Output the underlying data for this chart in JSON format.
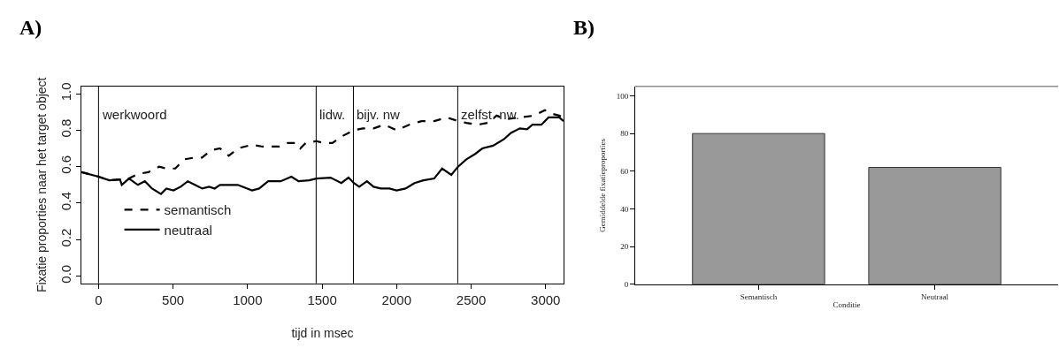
{
  "chart_data": [
    {
      "type": "line",
      "title": "A)",
      "xlabel": "tijd in msec",
      "ylabel": "Fixatie proporties naar het target object",
      "xlim": [
        -115,
        3120
      ],
      "ylim": [
        -0.04,
        1.04
      ],
      "xticks": [
        0,
        500,
        1000,
        1500,
        2000,
        2500,
        3000
      ],
      "yticks": [
        {
          "value": 0,
          "label": "0.0"
        },
        0.2,
        0.4,
        0.6,
        0.8,
        {
          "value": 1,
          "label": "1.0"
        }
      ],
      "grid": false,
      "legend": "bottom left",
      "marker": "none",
      "series": [
        {
          "name": "semantisch",
          "color": "#000000",
          "line_style": "dashed",
          "x": [
            -115,
            0,
            72,
            144,
            204,
            264,
            335,
            407,
            455,
            515,
            575,
            647,
            695,
            755,
            815,
            874,
            934,
            1030,
            1102,
            1210,
            1270,
            1330,
            1354,
            1390,
            1461,
            1509,
            1569,
            1641,
            1713,
            1773,
            1845,
            1917,
            2000,
            2084,
            2168,
            2252,
            2336,
            2412,
            2468,
            2540,
            2611,
            2671,
            2731,
            2827,
            2923,
            2995,
            3043,
            3091,
            3120
          ],
          "values": [
            0.57,
            0.545,
            0.525,
            0.53,
            0.535,
            0.56,
            0.57,
            0.6,
            0.59,
            0.59,
            0.64,
            0.65,
            0.65,
            0.69,
            0.7,
            0.66,
            0.7,
            0.72,
            0.71,
            0.71,
            0.73,
            0.73,
            0.7,
            0.73,
            0.74,
            0.73,
            0.73,
            0.77,
            0.8,
            0.81,
            0.81,
            0.83,
            0.8,
            0.83,
            0.85,
            0.85,
            0.87,
            0.85,
            0.84,
            0.83,
            0.84,
            0.88,
            0.86,
            0.87,
            0.88,
            0.91,
            0.89,
            0.88,
            0.87
          ]
        },
        {
          "name": "neutraal",
          "color": "#000000",
          "line_style": "solid",
          "x": [
            -115,
            0,
            72,
            144,
            156,
            204,
            264,
            311,
            359,
            419,
            455,
            503,
            551,
            599,
            647,
            695,
            743,
            779,
            815,
            934,
            1030,
            1078,
            1138,
            1222,
            1294,
            1342,
            1413,
            1461,
            1557,
            1629,
            1677,
            1713,
            1749,
            1801,
            1845,
            1893,
            1952,
            2000,
            2060,
            2120,
            2180,
            2252,
            2305,
            2367,
            2412,
            2468,
            2527,
            2575,
            2647,
            2719,
            2767,
            2827,
            2875,
            2911,
            2971,
            3019,
            3091,
            3120
          ],
          "values": [
            0.57,
            0.545,
            0.525,
            0.53,
            0.5,
            0.535,
            0.5,
            0.52,
            0.48,
            0.45,
            0.48,
            0.47,
            0.49,
            0.52,
            0.5,
            0.48,
            0.49,
            0.48,
            0.5,
            0.5,
            0.47,
            0.48,
            0.52,
            0.52,
            0.545,
            0.52,
            0.525,
            0.535,
            0.54,
            0.51,
            0.54,
            0.51,
            0.49,
            0.52,
            0.49,
            0.48,
            0.48,
            0.47,
            0.48,
            0.51,
            0.525,
            0.535,
            0.59,
            0.555,
            0.6,
            0.64,
            0.67,
            0.7,
            0.715,
            0.75,
            0.785,
            0.81,
            0.805,
            0.83,
            0.83,
            0.87,
            0.87,
            0.85
          ]
        }
      ],
      "ref_lines": [
        {
          "axis": "x",
          "value": 0,
          "label": "werkwoord",
          "color": "#000000"
        },
        {
          "axis": "x",
          "value": 1460,
          "label": "lidw.",
          "color": "#000000"
        },
        {
          "axis": "x",
          "value": 1710,
          "label": "bijv. nw",
          "color": "#000000"
        },
        {
          "axis": "x",
          "value": 2410,
          "label": "zelfst. nw.",
          "color": "#000000"
        }
      ]
    },
    {
      "type": "bar",
      "title": "B)",
      "xlabel": "Conditie",
      "ylabel": "Gemiddelde fixatieproporties",
      "categories": [
        "Semantisch",
        "Neutraal"
      ],
      "values": [
        80,
        62
      ],
      "color": "#999999",
      "ylim": [
        0,
        105
      ],
      "yticks": [
        0,
        20,
        40,
        60,
        80,
        100
      ],
      "grid": false,
      "legend": false
    }
  ]
}
